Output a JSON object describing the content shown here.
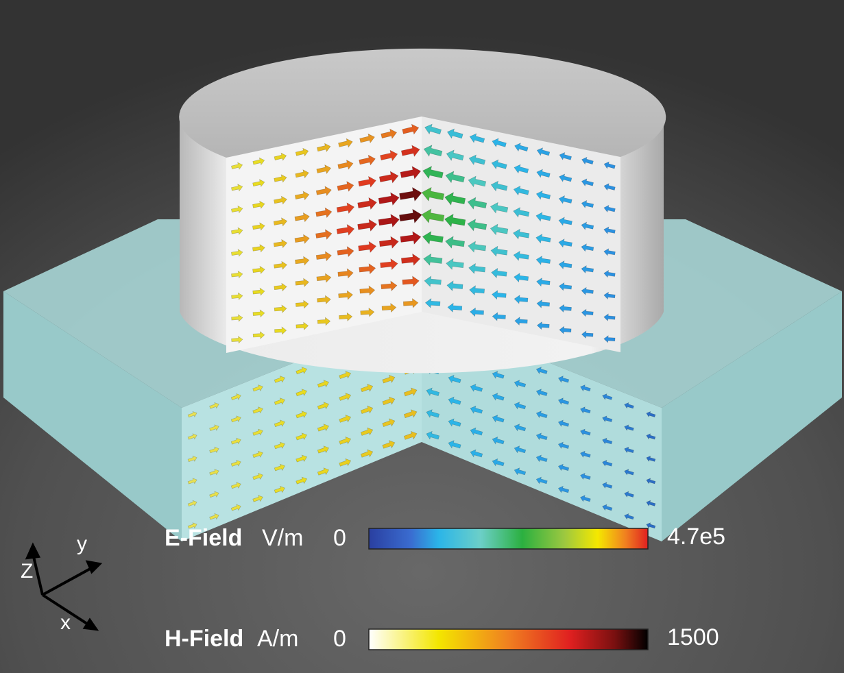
{
  "axes": {
    "z": "Z",
    "y": "y",
    "x": "x"
  },
  "legend": [
    {
      "name": "E-Field",
      "unit": "V/m",
      "min": "0",
      "max": "4.7e5"
    },
    {
      "name": "H-Field",
      "unit": "A/m",
      "min": "0",
      "max": "1500"
    }
  ]
}
